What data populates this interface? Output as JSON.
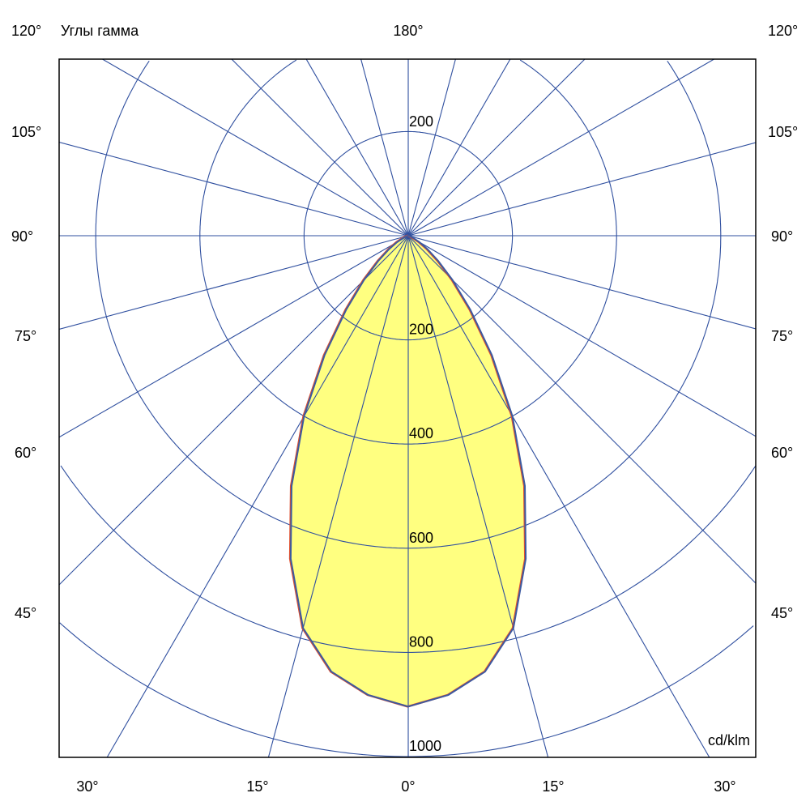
{
  "chart_data": {
    "type": "polar",
    "title": "Углы гамма",
    "unit_label": "cd/klm",
    "radial_ticks": [
      200,
      400,
      600,
      800,
      1000
    ],
    "top_radial_tick": "200",
    "radial_max": 1000,
    "angle_step_deg": 15,
    "angle_labels": {
      "top": "180°",
      "top_left": "120°",
      "top_right": "120°",
      "sides": [
        "105°",
        "90°",
        "75°",
        "60°",
        "45°"
      ],
      "bottom": [
        "30°",
        "15°",
        "0°",
        "15°",
        "30°"
      ]
    },
    "series": [
      {
        "gamma_deg": [
          0,
          5,
          10,
          15,
          20,
          25,
          30,
          35,
          40,
          45,
          50,
          55,
          60,
          65,
          70,
          75,
          80,
          85,
          90
        ],
        "values": [
          904,
          885,
          850,
          780,
          660,
          530,
          400,
          280,
          185,
          120,
          75,
          45,
          25,
          12,
          5,
          2,
          1,
          0,
          0
        ]
      }
    ],
    "colors": {
      "fill": "#ffff80",
      "outline": "#3c5aa0",
      "outline_secondary": "#e05030",
      "grid": "#2f4f9f"
    },
    "grid": true
  }
}
